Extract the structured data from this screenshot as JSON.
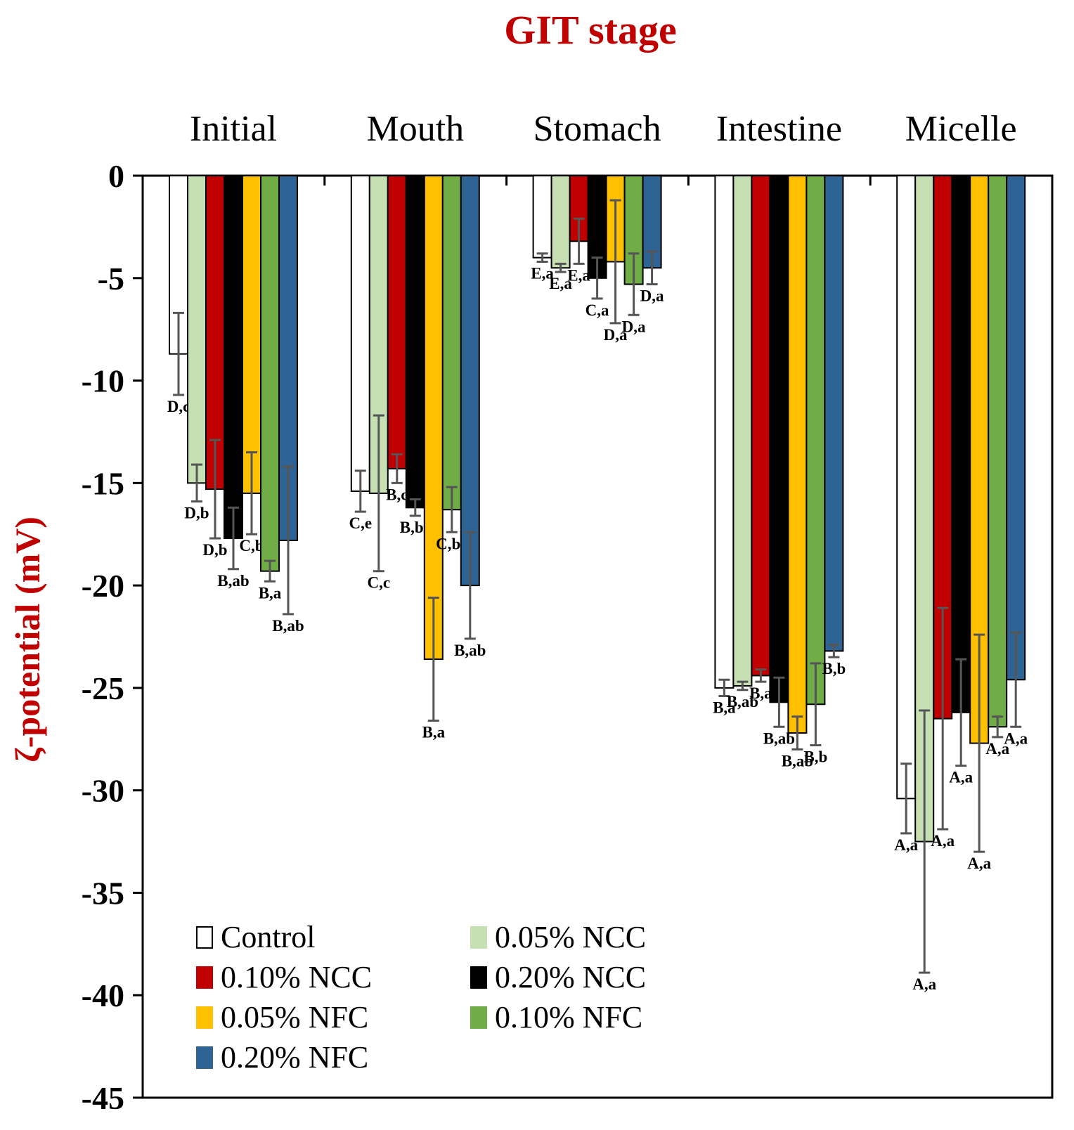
{
  "chart_data": {
    "type": "bar",
    "title": "GIT stage",
    "xlabel": "",
    "ylabel": "ζ-potential (mV)",
    "ylim": [
      -45,
      0
    ],
    "yticks": [
      0,
      -5,
      -10,
      -15,
      -20,
      -25,
      -30,
      -35,
      -40,
      -45
    ],
    "x_axis_position": "top",
    "grid": false,
    "legend_position": "bottom-left",
    "title_color": "#c00000",
    "ylabel_color": "#c00000",
    "categories": [
      "Initial",
      "Mouth",
      "Stomach",
      "Intestine",
      "Micelle"
    ],
    "series": [
      {
        "name": "Control",
        "color": "#ffffff",
        "values": [
          -8.7,
          -15.4,
          -4.0,
          -25.0,
          -30.4
        ],
        "errors": [
          2.0,
          1.0,
          0.2,
          0.4,
          1.7
        ],
        "labels": [
          "D,c",
          "C,e",
          "E,a",
          "B,a",
          "A,a"
        ]
      },
      {
        "name": "0.05% NCC",
        "color": "#c6e0b4",
        "values": [
          -15.0,
          -15.5,
          -4.5,
          -24.9,
          -32.5
        ],
        "errors": [
          0.9,
          3.8,
          0.2,
          0.2,
          6.4
        ],
        "labels": [
          "D,b",
          "C,c",
          "E,a",
          "B,ab",
          "A,a"
        ]
      },
      {
        "name": "0.10% NCC",
        "color": "#c00000",
        "values": [
          -15.3,
          -14.3,
          -3.2,
          -24.4,
          -26.5
        ],
        "errors": [
          2.4,
          0.7,
          1.1,
          0.3,
          5.4
        ],
        "labels": [
          "D,b",
          "B,c",
          "E,a",
          "B,a",
          "A,a"
        ]
      },
      {
        "name": "0.20% NCC",
        "color": "#000000",
        "values": [
          -17.7,
          -16.2,
          -5.0,
          -25.7,
          -26.2
        ],
        "errors": [
          1.5,
          0.4,
          1.0,
          1.2,
          2.6
        ],
        "labels": [
          "B,ab",
          "B,bc",
          "C,a",
          "B,ab",
          "A,a"
        ]
      },
      {
        "name": "0.05% NFC",
        "color": "#ffc000",
        "values": [
          -15.5,
          -23.6,
          -4.2,
          -27.2,
          -27.7
        ],
        "errors": [
          2.0,
          3.0,
          3.0,
          0.8,
          5.3
        ],
        "labels": [
          "C,b",
          "B,a",
          "D,a",
          "B,ab",
          "A,a"
        ]
      },
      {
        "name": "0.10% NFC",
        "color": "#70ad47",
        "values": [
          -19.3,
          -16.3,
          -5.3,
          -25.8,
          -26.9
        ],
        "errors": [
          0.5,
          1.1,
          1.5,
          2.0,
          0.5
        ],
        "labels": [
          "B,a",
          "C,bc",
          "D,a",
          "B,b",
          "A,a"
        ]
      },
      {
        "name": "0.20% NFC",
        "color": "#2e6396",
        "values": [
          -17.8,
          -20.0,
          -4.5,
          -23.2,
          -24.6
        ],
        "errors": [
          3.6,
          2.6,
          0.8,
          0.3,
          2.3
        ],
        "labels": [
          "B,ab",
          "B,ab",
          "D,a",
          "B,b",
          "A,a"
        ]
      }
    ]
  }
}
